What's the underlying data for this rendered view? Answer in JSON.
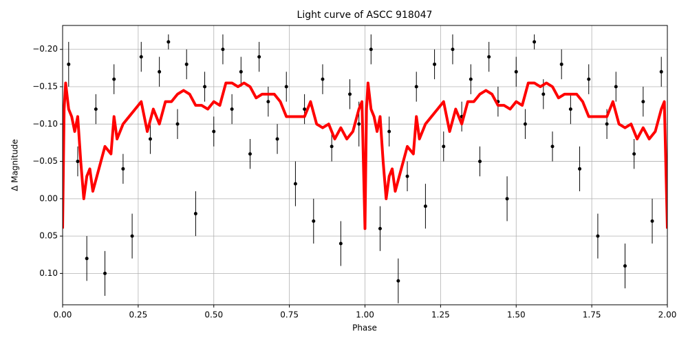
{
  "chart_data": {
    "type": "errorbar_line",
    "title": "Light curve of ASCC 918047",
    "xlabel": "Phase",
    "ylabel": "Δ Magnitude",
    "xlim": [
      0,
      2
    ],
    "ylim": [
      0.142,
      -0.232
    ],
    "xticks": [
      {
        "value": 0,
        "label": "0.00"
      },
      {
        "value": 0.25,
        "label": "0.25"
      },
      {
        "value": 0.5,
        "label": "0.50"
      },
      {
        "value": 0.75,
        "label": "0.75"
      },
      {
        "value": 1,
        "label": "1.00"
      },
      {
        "value": 1.25,
        "label": "1.25"
      },
      {
        "value": 1.5,
        "label": "1.50"
      },
      {
        "value": 1.75,
        "label": "1.75"
      },
      {
        "value": 2,
        "label": "2.00"
      }
    ],
    "yticks": [
      {
        "value": -0.2,
        "label": "−0.20"
      },
      {
        "value": -0.15,
        "label": "−0.15"
      },
      {
        "value": -0.1,
        "label": "−0.10"
      },
      {
        "value": -0.05,
        "label": "−0.05"
      },
      {
        "value": 0,
        "label": "0.00"
      },
      {
        "value": 0.05,
        "label": "0.05"
      },
      {
        "value": 0.1,
        "label": "0.10"
      }
    ],
    "grid": true,
    "scatter": {
      "color": "#000000",
      "x": [
        0.02,
        0.05,
        0.08,
        0.11,
        0.14,
        0.17,
        0.2,
        0.23,
        0.26,
        0.29,
        0.32,
        0.35,
        0.38,
        0.41,
        0.44,
        0.47,
        0.5,
        0.53,
        0.56,
        0.59,
        0.62,
        0.65,
        0.68,
        0.71,
        0.74,
        0.77,
        0.8,
        0.83,
        0.86,
        0.89,
        0.92,
        0.95,
        0.98,
        1.02,
        1.05,
        1.08,
        1.11,
        1.14,
        1.17,
        1.2,
        1.23,
        1.26,
        1.29,
        1.32,
        1.35,
        1.38,
        1.41,
        1.44,
        1.47,
        1.5,
        1.53,
        1.56,
        1.59,
        1.62,
        1.65,
        1.68,
        1.71,
        1.74,
        1.77,
        1.8,
        1.83,
        1.86,
        1.89,
        1.92,
        1.95,
        1.98
      ],
      "y": [
        -0.18,
        -0.05,
        0.08,
        -0.12,
        0.1,
        -0.16,
        -0.04,
        0.05,
        -0.19,
        -0.08,
        -0.17,
        -0.21,
        -0.1,
        -0.18,
        0.02,
        -0.15,
        -0.09,
        -0.2,
        -0.12,
        -0.17,
        -0.06,
        -0.19,
        -0.13,
        -0.08,
        -0.15,
        -0.02,
        -0.12,
        0.03,
        -0.16,
        -0.07,
        0.06,
        -0.14,
        -0.1,
        -0.2,
        0.04,
        -0.09,
        0.11,
        -0.03,
        -0.15,
        0.01,
        -0.18,
        -0.07,
        -0.2,
        -0.11,
        -0.16,
        -0.05,
        -0.19,
        -0.13,
        0.0,
        -0.17,
        -0.1,
        -0.21,
        -0.14,
        -0.07,
        -0.18,
        -0.12,
        -0.04,
        -0.16,
        0.05,
        -0.1,
        -0.15,
        0.09,
        -0.06,
        -0.13,
        0.03,
        -0.17
      ],
      "err": [
        0.03,
        0.02,
        0.03,
        0.02,
        0.03,
        0.02,
        0.02,
        0.03,
        0.02,
        0.02,
        0.02,
        0.01,
        0.02,
        0.02,
        0.03,
        0.02,
        0.02,
        0.02,
        0.02,
        0.02,
        0.02,
        0.02,
        0.02,
        0.02,
        0.02,
        0.03,
        0.02,
        0.03,
        0.02,
        0.02,
        0.03,
        0.02,
        0.03,
        0.02,
        0.03,
        0.02,
        0.03,
        0.02,
        0.02,
        0.03,
        0.02,
        0.02,
        0.02,
        0.02,
        0.02,
        0.02,
        0.02,
        0.02,
        0.03,
        0.02,
        0.02,
        0.01,
        0.02,
        0.02,
        0.02,
        0.02,
        0.03,
        0.02,
        0.03,
        0.02,
        0.02,
        0.03,
        0.02,
        0.02,
        0.03,
        0.02
      ]
    },
    "line": {
      "color": "#ff0000",
      "x": [
        0,
        0.005,
        0.01,
        0.02,
        0.03,
        0.04,
        0.05,
        0.06,
        0.07,
        0.08,
        0.09,
        0.1,
        0.12,
        0.14,
        0.16,
        0.17,
        0.18,
        0.2,
        0.22,
        0.24,
        0.26,
        0.28,
        0.3,
        0.32,
        0.34,
        0.36,
        0.38,
        0.4,
        0.42,
        0.44,
        0.46,
        0.48,
        0.5,
        0.52,
        0.54,
        0.56,
        0.58,
        0.6,
        0.62,
        0.64,
        0.66,
        0.68,
        0.7,
        0.72,
        0.74,
        0.76,
        0.78,
        0.8,
        0.82,
        0.84,
        0.86,
        0.88,
        0.9,
        0.92,
        0.94,
        0.96,
        0.98,
        0.99,
        1,
        1.005,
        1.01,
        1.02,
        1.03,
        1.04,
        1.05,
        1.06,
        1.07,
        1.08,
        1.09,
        1.1,
        1.12,
        1.14,
        1.16,
        1.17,
        1.18,
        1.2,
        1.22,
        1.24,
        1.26,
        1.28,
        1.3,
        1.32,
        1.34,
        1.36,
        1.38,
        1.4,
        1.42,
        1.44,
        1.46,
        1.48,
        1.5,
        1.52,
        1.54,
        1.56,
        1.58,
        1.6,
        1.62,
        1.64,
        1.66,
        1.68,
        1.7,
        1.72,
        1.74,
        1.76,
        1.78,
        1.8,
        1.82,
        1.84,
        1.86,
        1.88,
        1.9,
        1.92,
        1.94,
        1.96,
        1.98,
        1.99,
        2
      ],
      "values": [
        0.04,
        -0.12,
        -0.155,
        -0.12,
        -0.11,
        -0.09,
        -0.11,
        -0.05,
        0.0,
        -0.03,
        -0.04,
        -0.01,
        -0.04,
        -0.07,
        -0.06,
        -0.11,
        -0.08,
        -0.1,
        -0.11,
        -0.12,
        -0.13,
        -0.09,
        -0.12,
        -0.1,
        -0.13,
        -0.13,
        -0.14,
        -0.145,
        -0.14,
        -0.125,
        -0.125,
        -0.12,
        -0.13,
        -0.125,
        -0.155,
        -0.155,
        -0.15,
        -0.155,
        -0.15,
        -0.135,
        -0.14,
        -0.14,
        -0.14,
        -0.13,
        -0.11,
        -0.11,
        -0.11,
        -0.11,
        -0.13,
        -0.1,
        -0.095,
        -0.1,
        -0.08,
        -0.095,
        -0.08,
        -0.09,
        -0.12,
        -0.13,
        0.04,
        -0.12,
        -0.155,
        -0.12,
        -0.11,
        -0.09,
        -0.11,
        -0.05,
        0.0,
        -0.03,
        -0.04,
        -0.01,
        -0.04,
        -0.07,
        -0.06,
        -0.11,
        -0.08,
        -0.1,
        -0.11,
        -0.12,
        -0.13,
        -0.09,
        -0.12,
        -0.1,
        -0.13,
        -0.13,
        -0.14,
        -0.145,
        -0.14,
        -0.125,
        -0.125,
        -0.12,
        -0.13,
        -0.125,
        -0.155,
        -0.155,
        -0.15,
        -0.155,
        -0.15,
        -0.135,
        -0.14,
        -0.14,
        -0.14,
        -0.13,
        -0.11,
        -0.11,
        -0.11,
        -0.11,
        -0.13,
        -0.1,
        -0.095,
        -0.1,
        -0.08,
        -0.095,
        -0.08,
        -0.09,
        -0.12,
        -0.13,
        0.04
      ]
    }
  }
}
